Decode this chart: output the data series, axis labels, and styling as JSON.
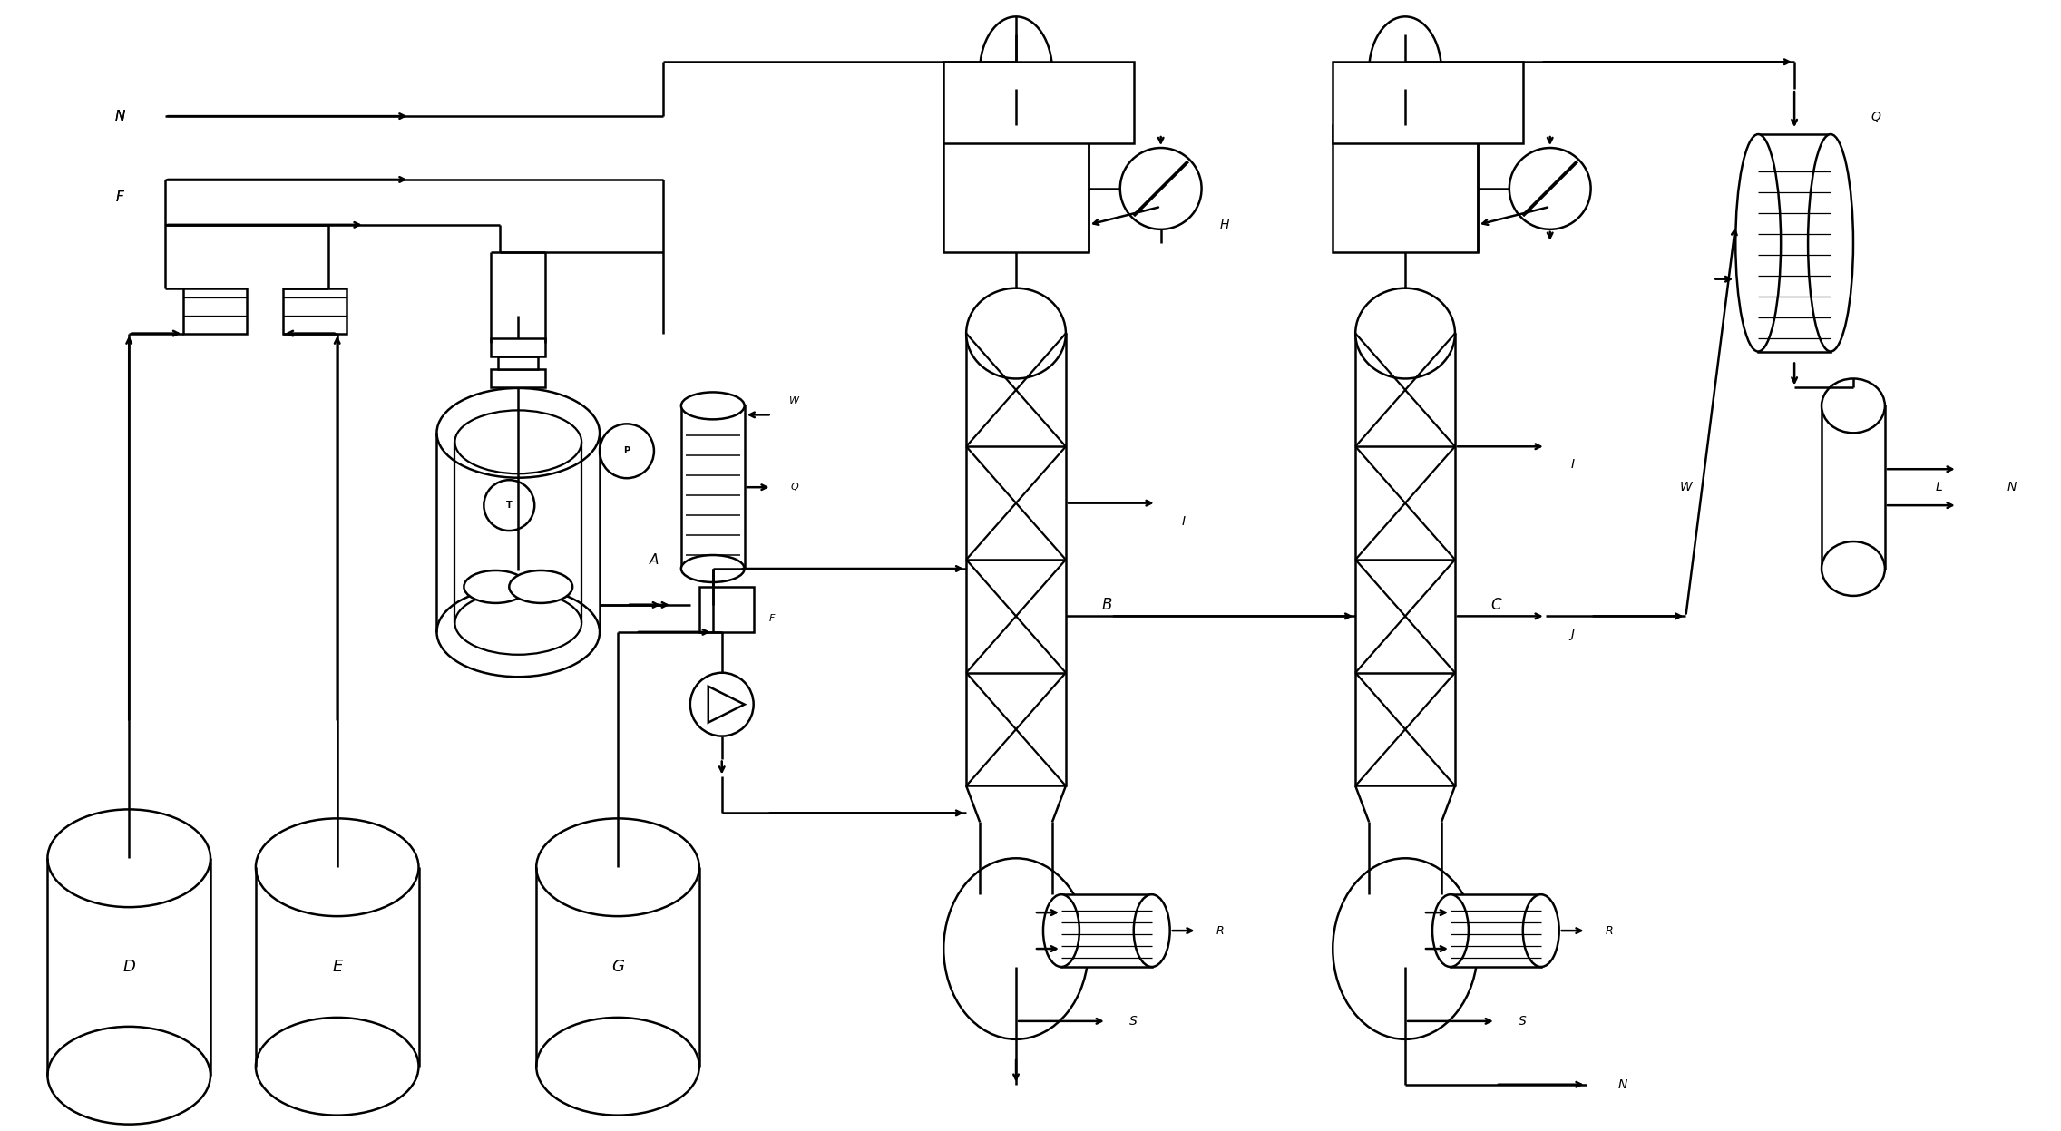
{
  "bg_color": "#ffffff",
  "lc": "#000000",
  "lw": 1.8,
  "fig_w": 22.72,
  "fig_h": 12.47,
  "xlim": [
    0,
    227.2
  ],
  "ylim": [
    0,
    124.7
  ]
}
